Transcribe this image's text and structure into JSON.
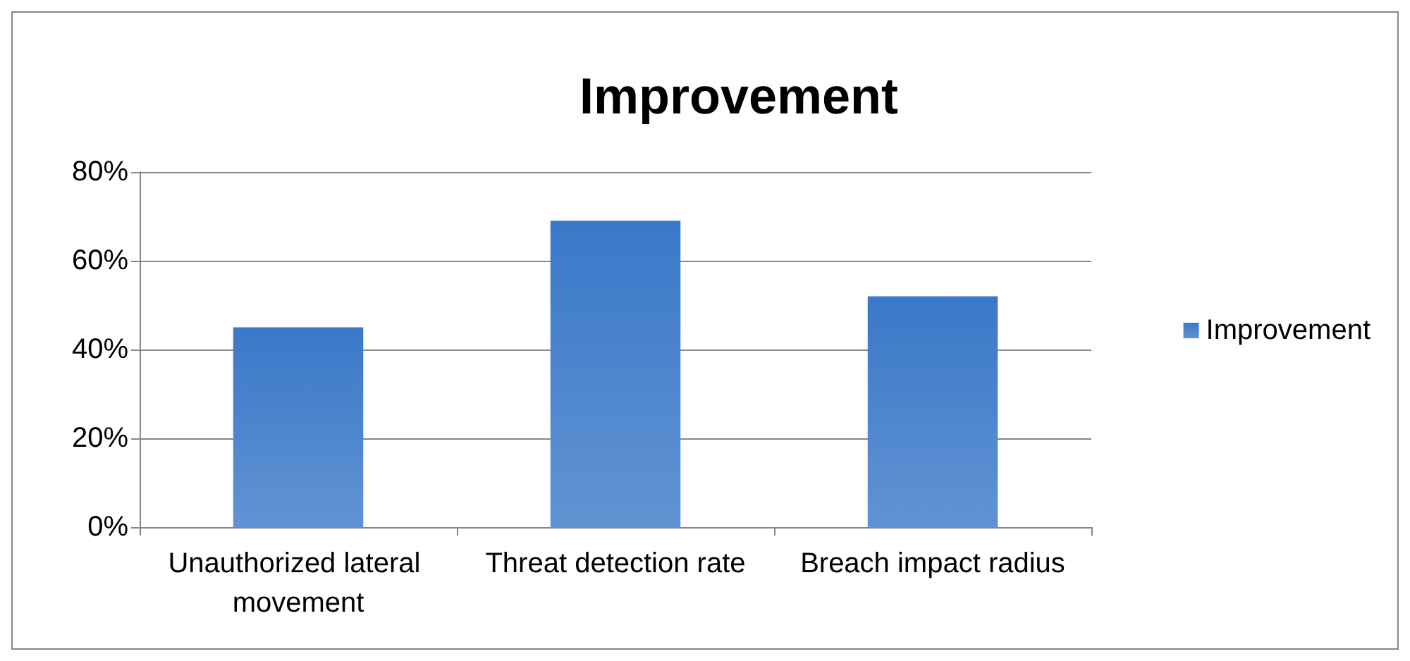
{
  "chart_data": {
    "type": "bar",
    "title": "Improvement",
    "categories": [
      "Unauthorized lateral movement",
      "Threat detection rate",
      "Breach impact radius"
    ],
    "series": [
      {
        "name": "Improvement",
        "color": "#3a78c8",
        "values": [
          45,
          69,
          52
        ]
      }
    ],
    "ylim": [
      0,
      80
    ],
    "yticks": [
      {
        "value": 0,
        "label": "0%"
      },
      {
        "value": 20,
        "label": "20%"
      },
      {
        "value": 40,
        "label": "40%"
      },
      {
        "value": 60,
        "label": "60%"
      },
      {
        "value": 80,
        "label": "80%"
      }
    ],
    "grid": "y",
    "legend": "right"
  }
}
